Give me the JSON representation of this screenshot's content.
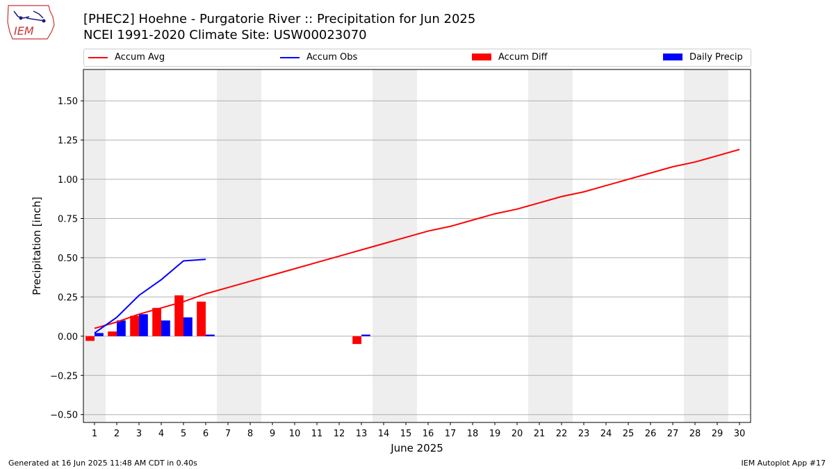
{
  "header": {
    "title_line1": "[PHEC2] Hoehne - Purgatorie River :: Precipitation for Jun 2025",
    "title_line2": "NCEI 1991-2020 Climate Site: USW00023070",
    "logo_text": "IEM"
  },
  "footer": {
    "left": "Generated at 16 Jun 2025 11:48 AM CDT in 0.40s",
    "right": "IEM Autoplot App #17"
  },
  "colors": {
    "avg": "#ff0000",
    "obs": "#0000ff",
    "diff": "#ff0000",
    "daily": "#0000ff",
    "weekend": "#eeeeee",
    "grid": "#b0b0b0"
  },
  "chart_data": {
    "type": "bar",
    "xlabel": "June 2025",
    "ylabel": "Precipitation [inch]",
    "xlim": [
      0.5,
      30.5
    ],
    "ylim": [
      -0.55,
      1.7
    ],
    "x_ticks": [
      1,
      2,
      3,
      4,
      5,
      6,
      7,
      8,
      9,
      10,
      11,
      12,
      13,
      14,
      15,
      16,
      17,
      18,
      19,
      20,
      21,
      22,
      23,
      24,
      25,
      26,
      27,
      28,
      29,
      30
    ],
    "y_ticks": [
      -0.5,
      -0.25,
      0.0,
      0.25,
      0.5,
      0.75,
      1.0,
      1.25,
      1.5
    ],
    "y_tick_labels": [
      "−0.50",
      "−0.25",
      "0.00",
      "0.25",
      "0.50",
      "0.75",
      "1.00",
      "1.25",
      "1.50"
    ],
    "grid": "horizontal",
    "legend_position": "top, above plot",
    "weekend_days": [
      1,
      7,
      8,
      14,
      15,
      21,
      22,
      28,
      29
    ],
    "series": [
      {
        "name": "Accum Avg",
        "type": "line",
        "x": [
          1,
          2,
          3,
          4,
          5,
          6,
          7,
          8,
          9,
          10,
          11,
          12,
          13,
          14,
          15,
          16,
          17,
          18,
          19,
          20,
          21,
          22,
          23,
          24,
          25,
          26,
          27,
          28,
          29,
          30
        ],
        "values": [
          0.05,
          0.09,
          0.14,
          0.18,
          0.22,
          0.27,
          0.31,
          0.35,
          0.39,
          0.43,
          0.47,
          0.51,
          0.55,
          0.59,
          0.63,
          0.67,
          0.7,
          0.74,
          0.78,
          0.81,
          0.85,
          0.89,
          0.92,
          0.96,
          1.0,
          1.04,
          1.08,
          1.11,
          1.15,
          1.19
        ]
      },
      {
        "name": "Accum Obs",
        "type": "line",
        "x": [
          1,
          2,
          3,
          4,
          5,
          6
        ],
        "values": [
          0.02,
          0.12,
          0.26,
          0.36,
          0.48,
          0.49
        ]
      },
      {
        "name": "Accum Diff",
        "type": "bar",
        "x": [
          1,
          2,
          3,
          4,
          5,
          6,
          13
        ],
        "values": [
          -0.03,
          0.03,
          0.13,
          0.18,
          0.26,
          0.22,
          -0.05
        ]
      },
      {
        "name": "Daily Precip",
        "type": "bar",
        "x": [
          1,
          2,
          3,
          4,
          5,
          6,
          13
        ],
        "values": [
          0.02,
          0.1,
          0.14,
          0.1,
          0.12,
          0.01,
          0.01
        ]
      }
    ]
  }
}
